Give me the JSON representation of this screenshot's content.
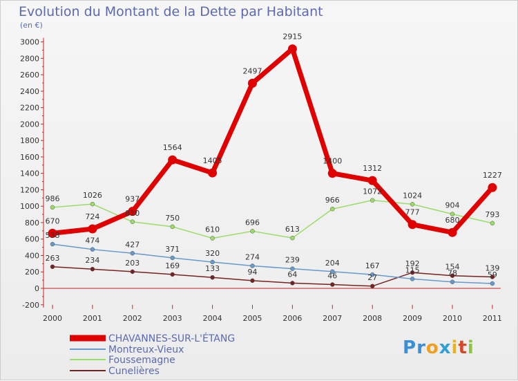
{
  "title": "Evolution du Montant de la Dette par Habitant",
  "unit": "(en €)",
  "logo": [
    "P",
    "r",
    "o",
    "x",
    "i",
    "t",
    "i"
  ],
  "chart_data": {
    "type": "line",
    "title": "Evolution du Montant de la Dette par Habitant",
    "ylabel": "(en €)",
    "x": [
      "2000",
      "2001",
      "2002",
      "2003",
      "2004",
      "2005",
      "2006",
      "2007",
      "2008",
      "2009",
      "2010",
      "2011"
    ],
    "ylim": [
      -200,
      3000
    ],
    "yticks": [
      -200,
      0,
      200,
      400,
      600,
      800,
      1000,
      1200,
      1400,
      1600,
      1800,
      2000,
      2200,
      2400,
      2600,
      2800,
      3000
    ],
    "grid": false,
    "legend_position": "bottom-left",
    "series": [
      {
        "name": "CHAVANNES-SUR-L'ÉTANG",
        "color": "#e00000",
        "width": 7,
        "values": [
          670,
          724,
          937,
          1564,
          1405,
          2497,
          2915,
          1400,
          1312,
          777,
          680,
          1227
        ]
      },
      {
        "name": "Montreux-Vieux",
        "color": "#6699cc",
        "width": 1.5,
        "values": [
          538,
          474,
          427,
          371,
          320,
          274,
          239,
          204,
          167,
          115,
          78,
          59
        ]
      },
      {
        "name": "Foussemagne",
        "color": "#99dd66",
        "width": 1.5,
        "values": [
          986,
          1026,
          810,
          750,
          610,
          696,
          613,
          966,
          1072,
          1024,
          904,
          793
        ]
      },
      {
        "name": "Cunelières",
        "color": "#772222",
        "width": 1.5,
        "values": [
          263,
          234,
          203,
          169,
          133,
          94,
          64,
          46,
          27,
          192,
          154,
          139
        ]
      }
    ],
    "data_labels": [
      [
        "670",
        "724",
        "937",
        "1564",
        "1405",
        "2497",
        "2915",
        "1400",
        "1312",
        "777",
        "680",
        "1227"
      ],
      [
        "538",
        "474",
        "427",
        "371",
        "320",
        "274",
        "239",
        "204",
        "167",
        "115",
        "78",
        "59"
      ],
      [
        "986",
        "1026",
        "810",
        "750",
        "610",
        "696",
        "613",
        "966",
        "1072",
        "1024",
        "904",
        "793"
      ],
      [
        "263",
        "234",
        "203",
        "169",
        "133",
        "94",
        "64",
        "46",
        "27",
        "192",
        "154",
        "139"
      ]
    ]
  }
}
